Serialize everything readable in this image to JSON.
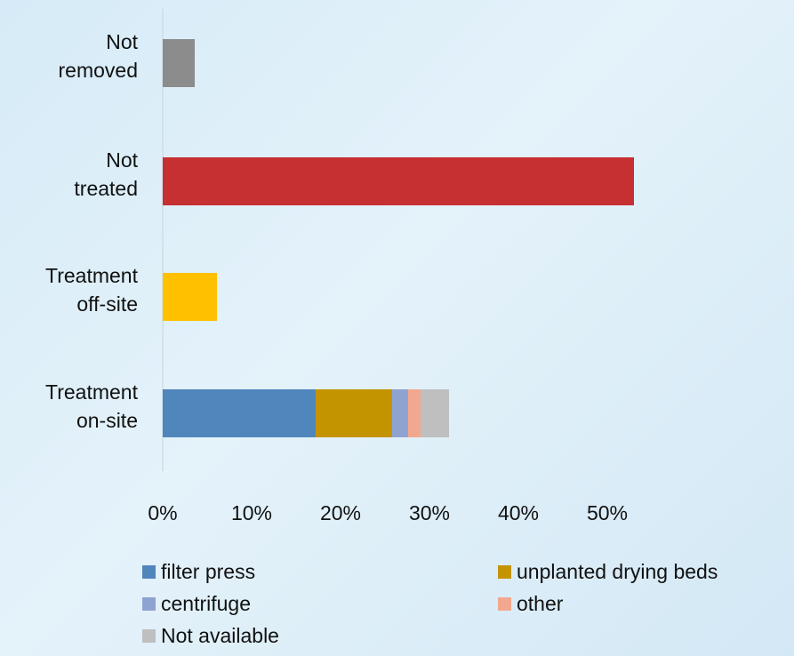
{
  "chart_data": {
    "type": "bar",
    "orientation": "horizontal",
    "stacked": true,
    "categories": [
      [
        "Not",
        "removed"
      ],
      [
        "Not",
        "treated"
      ],
      [
        "Treatment",
        "off-site"
      ],
      [
        "Treatment",
        "on-site"
      ]
    ],
    "xlim": [
      0,
      55
    ],
    "xticks": [
      0,
      10,
      20,
      30,
      40,
      50
    ],
    "xtick_labels": [
      "0%",
      "10%",
      "20%",
      "30%",
      "40%",
      "50%"
    ],
    "grid": false,
    "legend_position": "bottom",
    "single_bars": [
      {
        "category_index": 0,
        "value": 3.6,
        "color": "#8c8c8c"
      },
      {
        "category_index": 1,
        "value": 53.0,
        "color": "#c63033"
      },
      {
        "category_index": 2,
        "value": 6.1,
        "color": "#ffc000"
      }
    ],
    "stack_category_index": 3,
    "series": [
      {
        "name": "filter press",
        "value": 17.2,
        "color": "#4f86bc"
      },
      {
        "name": "unplanted drying beds",
        "value": 8.6,
        "color": "#c49400"
      },
      {
        "name": "centrifuge",
        "value": 1.8,
        "color": "#8fa3d1"
      },
      {
        "name": "other",
        "value": 1.4,
        "color": "#f2a88f"
      },
      {
        "name": "Not available",
        "value": 3.2,
        "color": "#bfbfbf"
      }
    ]
  }
}
